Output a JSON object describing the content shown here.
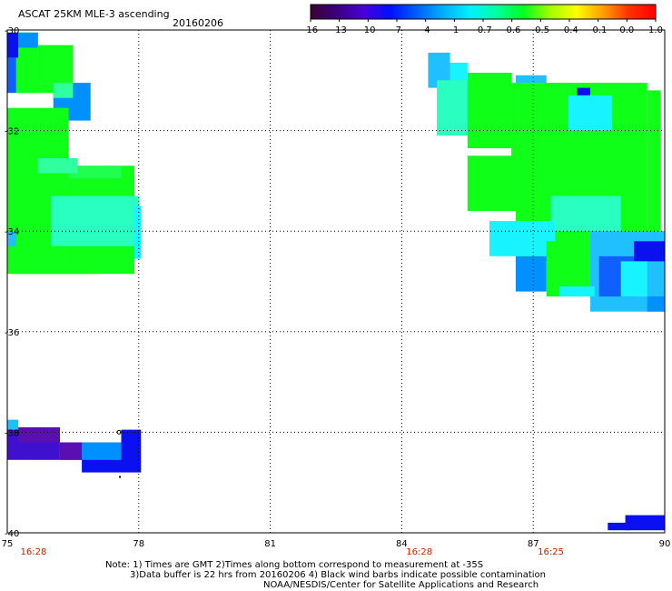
{
  "header": {
    "title": "ASCAT 25KM MLE-3 ascending",
    "date": "20160206"
  },
  "colorbar": {
    "tick_labels": [
      "-16",
      "-13",
      "-10",
      "-7",
      "-4",
      "-1",
      "-0.7",
      "-0.6",
      "-0.5",
      "-0.4",
      "-0.1",
      "0.0",
      "1.0"
    ],
    "colors": [
      "#3d0035",
      "#3a0080",
      "#4a00d8",
      "#0010ff",
      "#0060ff",
      "#00b0ff",
      "#00f0ff",
      "#00ffa0",
      "#00ff20",
      "#a0ff00",
      "#ffff00",
      "#ffa000",
      "#ff3000",
      "#ff0000"
    ]
  },
  "map": {
    "x_tick_labels": [
      "75",
      "78",
      "81",
      "84",
      "87",
      "90"
    ],
    "y_tick_labels": [
      "-30",
      "-32",
      "-34",
      "-36",
      "-38",
      "-40"
    ],
    "pass_times": [
      "16:28",
      "16:28",
      "16:25"
    ],
    "pass_time_color": "#cc2200",
    "data_colors": {
      "green": "#10ff18",
      "green_light": "#20ff50",
      "mint": "#30ffa0",
      "cyan_green": "#28ffc0",
      "cyan": "#18f4ff",
      "light_blue": "#20c0ff",
      "blue": "#0090ff",
      "mid_blue": "#1060ff",
      "deep_blue": "#0a10f0",
      "violet": "#4010d0",
      "purple": "#5a10b0"
    }
  },
  "notes": {
    "line1": "Note: 1) Times are GMT 2)Times along bottom correspond to measurement at -35S",
    "line2": "3)Data buffer is 22 hrs from 20160206 4) Black wind barbs indicate possible contamination",
    "line3": "NOAA/NESDIS/Center for Satellite Applications and Research"
  }
}
